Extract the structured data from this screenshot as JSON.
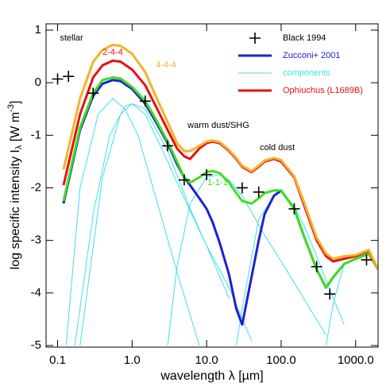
{
  "chart_data": {
    "type": "line",
    "xlabel": "wavelength λ [µm]",
    "ylabel": {
      "text": "log specific intensity I",
      "sub": "λ",
      "unit": " [W m",
      "sup": "-3",
      "end": "]"
    },
    "log_x": true,
    "xlim": [
      0.07,
      2000
    ],
    "ylim": [
      -5.03,
      1.12
    ],
    "xticks": [
      0.1,
      {
        "value": 1,
        "label": "1.0"
      },
      {
        "value": 10,
        "label": "10.0"
      },
      {
        "value": 100,
        "label": "100.0"
      },
      {
        "value": 1000,
        "label": "1000.0"
      }
    ],
    "yticks": [
      -5,
      -4,
      -3,
      -2,
      -1,
      0,
      1
    ],
    "legend": "top-right",
    "x": [
      0.12,
      0.2,
      0.3,
      0.4,
      0.55,
      0.7,
      1,
      1.5,
      2,
      3,
      4,
      5,
      6,
      8,
      10,
      12,
      15,
      20,
      25,
      30,
      40,
      50,
      60,
      80,
      100,
      150,
      200,
      300,
      400,
      500,
      700,
      1000,
      1500,
      2000
    ],
    "series": [
      {
        "name": "Black 1994",
        "color": "#000000",
        "marker": "plus",
        "x": [
          0.1,
          0.14,
          0.3,
          1.5,
          3,
          5,
          10,
          30,
          50,
          150,
          300,
          450,
          1400
        ],
        "values": [
          0.07,
          0.12,
          -0.2,
          -0.35,
          -1.2,
          -1.85,
          -1.75,
          -2.0,
          -2.08,
          -2.4,
          -3.5,
          -4.02,
          -3.37
        ]
      },
      {
        "name": "Zucconi+ 2001",
        "color": "#2020d0",
        "width": 3,
        "values": [
          -2.3,
          -0.9,
          -0.25,
          -0.02,
          0.05,
          0.03,
          -0.12,
          -0.4,
          -0.7,
          -1.15,
          -1.55,
          -1.8,
          -1.95,
          -2.2,
          -2.4,
          -2.65,
          -3.05,
          -3.65,
          -4.3,
          -4.6,
          -3.7,
          -3.0,
          -2.5,
          -2.15,
          -2.05,
          -2.4,
          -2.9,
          -3.55,
          -3.9,
          -3.7,
          -3.45,
          -3.35,
          -3.25,
          -3.55
        ]
      },
      {
        "name": "components",
        "color": "#3de0e8",
        "width": 1,
        "x": [
          0.17,
          0.3,
          0.5,
          0.8,
          1,
          1.5,
          3,
          5,
          10,
          20,
          40,
          null,
          0.2,
          0.4,
          0.7,
          1,
          1.5,
          3,
          6,
          10,
          20,
          null,
          0.13,
          0.2,
          0.35,
          0.55,
          0.8,
          1.2,
          2,
          4,
          8,
          null,
          3,
          4,
          6,
          10,
          15,
          20,
          30,
          60,
          100,
          200,
          400,
          null,
          25,
          30,
          50,
          80,
          100,
          150,
          200,
          300,
          400,
          500,
          700,
          null,
          400,
          500,
          700,
          1000,
          1500,
          2000
        ],
        "values": [
          -5,
          -2.5,
          -1.0,
          -0.45,
          -0.4,
          -0.6,
          -1.5,
          -2.2,
          -3.1,
          -3.9,
          -4.9,
          null,
          -5,
          -1.8,
          -0.6,
          -0.4,
          -0.5,
          -1.3,
          -2.4,
          -3.1,
          -4.1,
          null,
          -5,
          -2.0,
          -0.6,
          -0.3,
          -0.5,
          -1.0,
          -2.1,
          -3.6,
          -5,
          null,
          -5,
          -3.5,
          -2.3,
          -1.8,
          -1.75,
          -1.85,
          -2.15,
          -2.9,
          -3.4,
          -4.1,
          -4.8,
          null,
          -5,
          -4.3,
          -2.6,
          -2.15,
          -2.08,
          -2.35,
          -2.7,
          -3.3,
          -3.75,
          -4.1,
          -4.6,
          null,
          -5,
          -4.2,
          -3.45,
          -3.35,
          -3.25,
          -3.55
        ]
      },
      {
        "name": "Ophiuchus (L1689B)",
        "color": "#e81010",
        "width": 3,
        "values": [
          -1.95,
          -0.6,
          0.1,
          0.33,
          0.42,
          0.4,
          0.25,
          -0.05,
          -0.4,
          -0.9,
          -1.25,
          -1.4,
          -1.45,
          -1.25,
          -1.15,
          -1.12,
          -1.15,
          -1.3,
          -1.45,
          -1.6,
          -1.7,
          -1.6,
          -1.5,
          -1.45,
          -1.5,
          -1.8,
          -2.3,
          -3.0,
          -3.3,
          -3.4,
          -3.35,
          -3.3,
          -3.2,
          -3.55
        ]
      },
      {
        "name": "4-4-4",
        "color": "#f5b22a",
        "width": 3,
        "values": [
          -1.65,
          -0.3,
          0.4,
          0.62,
          0.72,
          0.7,
          0.55,
          0.2,
          -0.2,
          -0.75,
          -1.15,
          -1.3,
          -1.3,
          -1.2,
          -1.12,
          -1.1,
          -1.13,
          -1.28,
          -1.43,
          -1.58,
          -1.68,
          -1.58,
          -1.48,
          -1.43,
          -1.47,
          -1.78,
          -2.25,
          -2.95,
          -3.25,
          -3.35,
          -3.3,
          -3.28,
          -3.18,
          -3.55
        ]
      },
      {
        "name": "1-1-1",
        "color": "#3de020",
        "width": 3,
        "values": [
          -2.25,
          -0.85,
          -0.2,
          0.05,
          0.1,
          0.08,
          -0.08,
          -0.35,
          -0.65,
          -1.12,
          -1.5,
          -1.8,
          -1.9,
          -1.8,
          -1.7,
          -1.68,
          -1.72,
          -1.9,
          -2.1,
          -2.25,
          -2.3,
          -2.2,
          -2.1,
          -2.05,
          -2.05,
          -2.4,
          -2.9,
          -3.55,
          -3.9,
          -3.7,
          -3.45,
          -3.35,
          -3.25,
          -3.55
        ]
      }
    ],
    "legend_series": [
      0,
      1,
      2,
      3
    ],
    "annotations": [
      {
        "text": "stellar",
        "color": "#000000"
      },
      {
        "text": "2-4-4",
        "color": "#e81010"
      },
      {
        "text": "4-4-4",
        "color": "#f5b22a"
      },
      {
        "text": "warm dust/SHG",
        "color": "#000000"
      },
      {
        "text": "cold dust",
        "color": "#000000"
      },
      {
        "text": "1-1-1",
        "color": "#3de020"
      }
    ]
  }
}
